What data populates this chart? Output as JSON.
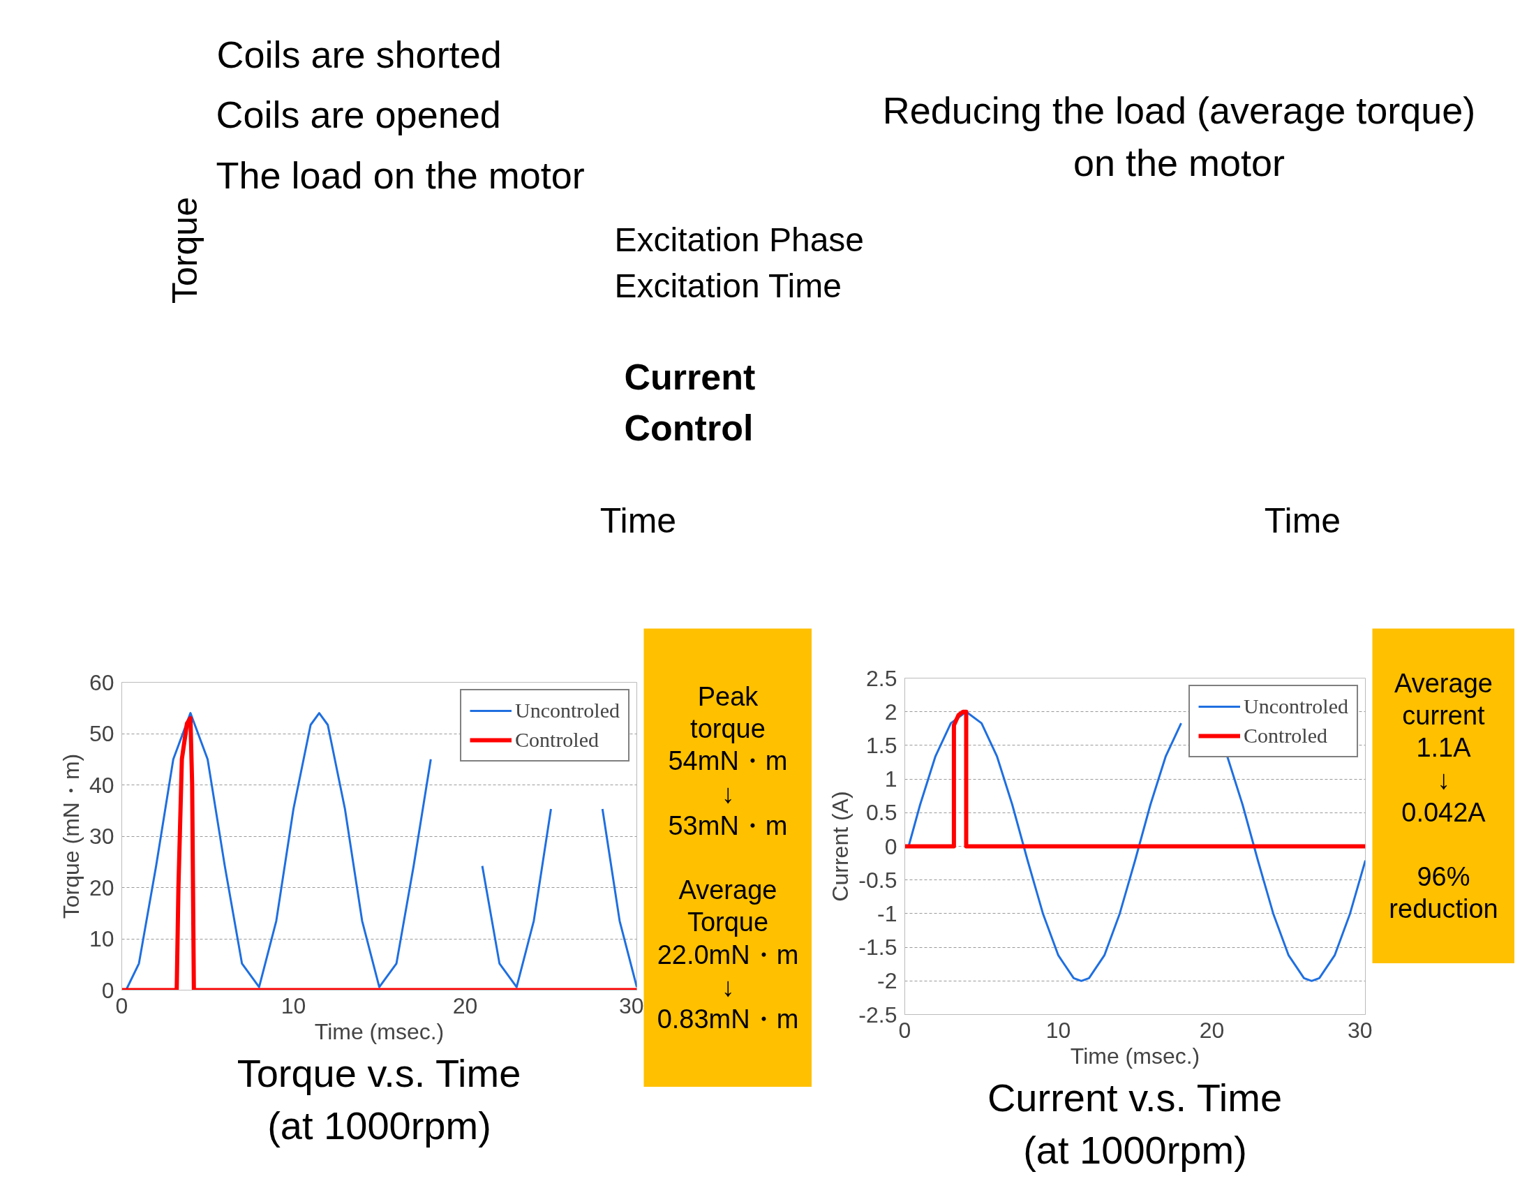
{
  "chart_data": [
    {
      "type": "other",
      "annotations": [
        "Coils are shorted",
        "Coils are opened",
        "The load on the motor",
        "Reducing the load (average torque)\non the motor",
        "Torque",
        "Excitation Phase\nExcitation Time",
        "Current\nControl",
        "Time",
        "Time"
      ]
    },
    {
      "type": "line",
      "title": "Torque v.s. Time\n(at 1000rpm)",
      "xlabel": "Time (msec.)",
      "ylabel": "Torque (mN・m)",
      "xlim": [
        0,
        30
      ],
      "ylim": [
        0,
        60
      ],
      "xticks": [
        0,
        10,
        20,
        30
      ],
      "yticks": [
        0,
        10,
        20,
        30,
        40,
        50,
        60
      ],
      "grid": "y",
      "legend": "top right",
      "annotations": [
        "Peak\ntorque\n54mN・m\n↓\n53mN・m\n\nAverage\nTorque\n22.0mN・m\n↓\n0.83mN・m"
      ],
      "series": [
        {
          "name": "Uncontroled",
          "color": "#1f6fe0",
          "x": [
            0.25,
            1,
            2,
            3,
            4,
            5,
            6,
            7,
            8,
            9,
            10,
            11,
            11.5,
            12,
            13,
            14,
            15,
            16,
            17,
            18,
            19,
            20,
            21,
            22,
            23,
            24,
            25,
            26,
            26.5,
            27,
            28,
            29,
            30
          ],
          "values": [
            0,
            5.2,
            24.2,
            45,
            54,
            45,
            24.2,
            5.2,
            0.6,
            13.5,
            35.3,
            51.7,
            54,
            51.7,
            35.3,
            13.5,
            0.6,
            5.2,
            24.2,
            45,
            null,
            null,
            24.2,
            5.2,
            0.6,
            13.5,
            35.3,
            null,
            null,
            null,
            35.3,
            13.5,
            0.6
          ]
        },
        {
          "name": "Controled",
          "color": "#ff0000",
          "x": [
            0,
            3.2,
            3.3,
            3.5,
            3.8,
            4.0,
            4.1,
            4.2,
            30
          ],
          "values": [
            0,
            0,
            20,
            45,
            52,
            53,
            40,
            0,
            0
          ]
        }
      ]
    },
    {
      "type": "line",
      "title": "Current v.s. Time\n(at 1000rpm)",
      "xlabel": "Time (msec.)",
      "ylabel": "Current (A)",
      "xlim": [
        0,
        30
      ],
      "ylim": [
        -2.5,
        2.5
      ],
      "xticks": [
        0,
        10,
        20,
        30
      ],
      "yticks": [
        -2.5,
        -2,
        -1.5,
        -1,
        -0.5,
        0,
        0.5,
        1,
        1.5,
        2,
        2.5
      ],
      "grid": "y",
      "legend": "top right",
      "annotations": [
        "Average\ncurrent\n1.1A\n↓\n0.042A\n\n96%\nreduction"
      ],
      "series": [
        {
          "name": "Uncontroled",
          "color": "#1f6fe0",
          "x": [
            0.25,
            1,
            2,
            3,
            4,
            5,
            6,
            7,
            8,
            9,
            10,
            11,
            11.5,
            12,
            13,
            14,
            15,
            16,
            17,
            18,
            19,
            20,
            21,
            22,
            23,
            24,
            25,
            26,
            26.5,
            27,
            28,
            29,
            30
          ],
          "values": [
            0,
            0.62,
            1.34,
            1.83,
            2,
            1.83,
            1.34,
            0.62,
            -0.21,
            -1,
            -1.62,
            -1.96,
            -2,
            -1.96,
            -1.62,
            -1,
            -0.21,
            0.62,
            1.34,
            1.83,
            null,
            null,
            1.34,
            0.62,
            -0.21,
            -1,
            -1.62,
            -1.96,
            -2,
            -1.96,
            -1.62,
            -1,
            -0.21
          ]
        },
        {
          "name": "Controled",
          "color": "#ff0000",
          "x": [
            0,
            3.2,
            3.2,
            3.5,
            3.8,
            4.0,
            4.0,
            30
          ],
          "values": [
            0,
            0,
            1.8,
            1.95,
            2,
            2,
            0,
            0
          ]
        }
      ]
    }
  ]
}
